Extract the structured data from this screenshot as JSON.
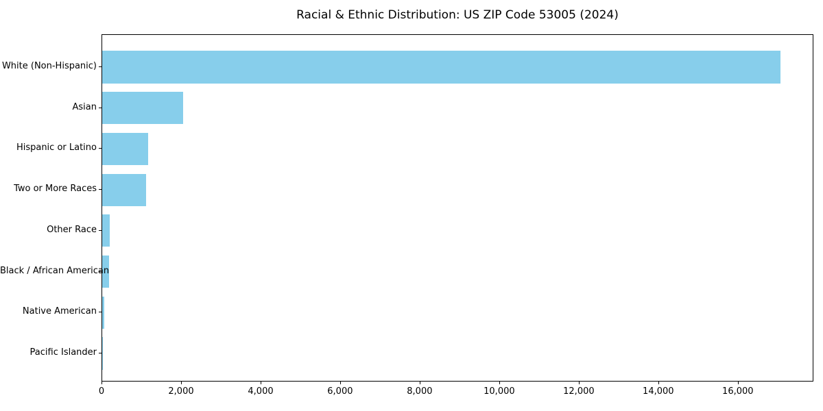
{
  "title": "Racial & Ethnic Distribution: US ZIP Code 53005 (2024)",
  "colors": {
    "bar": "#87CEEB",
    "axis": "#000000",
    "background": "#FFFFFF",
    "text": "#000000"
  },
  "chart_data": {
    "type": "bar",
    "orientation": "horizontal",
    "title": "Racial & Ethnic Distribution: US ZIP Code 53005 (2024)",
    "categories": [
      "White (Non-Hispanic)",
      "Asian",
      "Hispanic or Latino",
      "Two or More Races",
      "Other Race",
      "Black / African American",
      "Native American",
      "Pacific Islander"
    ],
    "values": [
      17050,
      2030,
      1150,
      1110,
      195,
      175,
      55,
      5
    ],
    "xlabel": "",
    "ylabel": "",
    "xlim": [
      0,
      17900
    ],
    "x_ticks": [
      0,
      2000,
      4000,
      6000,
      8000,
      10000,
      12000,
      14000,
      16000
    ],
    "x_tick_labels": [
      "0",
      "2,000",
      "4,000",
      "6,000",
      "8,000",
      "10,000",
      "12,000",
      "14,000",
      "16,000"
    ],
    "grid": false,
    "legend": null,
    "bar_color": "#87CEEB"
  }
}
